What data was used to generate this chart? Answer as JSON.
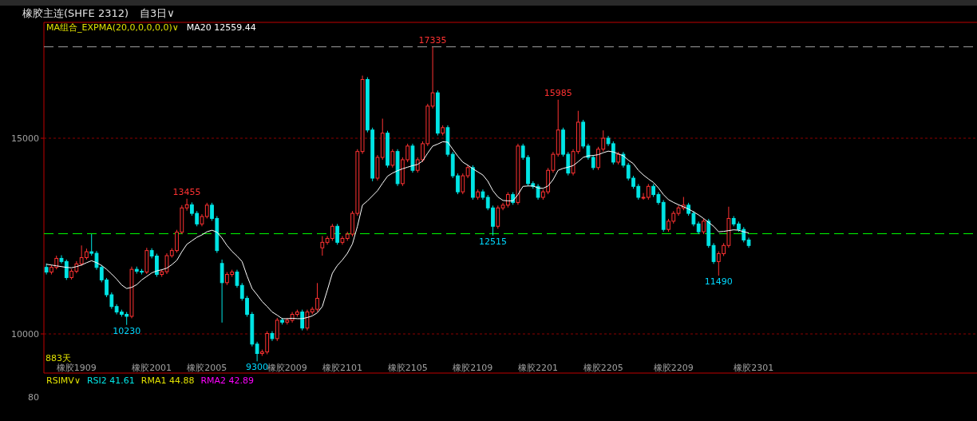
{
  "chart_data": [
    {
      "type": "candlestick",
      "title": "橡胶主连(SHFE 2312)",
      "subtitle": "自3日∨",
      "legend_title": "MA组合_EXPMA(20,0,0,0,0,0)∨",
      "legend": "top left",
      "grid": "y",
      "ylim": [
        9000,
        17960
      ],
      "yticks": [
        10000,
        15000
      ],
      "categories": [
        null,
        null,
        null,
        null,
        null,
        null,
        "橡胶1909",
        null,
        null,
        null,
        null,
        null,
        null,
        null,
        null,
        null,
        null,
        null,
        null,
        null,
        null,
        "橡胶2001",
        null,
        null,
        null,
        null,
        null,
        null,
        null,
        null,
        null,
        null,
        "橡胶2005",
        null,
        null,
        null,
        null,
        null,
        null,
        null,
        null,
        null,
        null,
        null,
        null,
        null,
        null,
        null,
        "橡胶2009",
        null,
        null,
        null,
        null,
        null,
        null,
        null,
        null,
        null,
        null,
        "橡胶2101",
        null,
        null,
        null,
        null,
        null,
        null,
        null,
        null,
        null,
        null,
        null,
        null,
        "橡胶2105",
        null,
        null,
        null,
        null,
        null,
        null,
        null,
        null,
        null,
        null,
        null,
        null,
        "橡胶2109",
        null,
        null,
        null,
        null,
        null,
        null,
        null,
        null,
        null,
        null,
        null,
        null,
        "橡胶2201",
        null,
        null,
        null,
        null,
        null,
        null,
        null,
        null,
        null,
        null,
        null,
        null,
        "橡胶2205",
        null,
        null,
        null,
        null,
        null,
        null,
        null,
        null,
        null,
        null,
        null,
        null,
        null,
        "橡胶2209",
        null,
        null,
        null,
        null,
        null,
        null,
        null,
        null,
        null,
        null,
        null,
        null,
        null,
        null,
        null,
        "橡胶2301",
        null,
        null,
        null,
        null,
        null,
        null,
        null,
        null,
        null,
        null,
        null,
        null,
        null,
        null,
        null,
        null,
        null,
        null,
        null,
        null,
        null,
        null,
        null,
        null,
        null,
        null,
        null,
        null,
        null,
        null,
        null,
        null,
        null,
        null,
        null,
        null,
        null,
        null,
        null,
        null,
        null,
        null,
        null,
        null
      ],
      "ohlc": [
        [
          11700,
          11800,
          11520,
          11580
        ],
        [
          11580,
          11760,
          11520,
          11700
        ],
        [
          11700,
          12000,
          11650,
          11930
        ],
        [
          11930,
          12010,
          11800,
          11850
        ],
        [
          11850,
          11900,
          11380,
          11440
        ],
        [
          11440,
          11660,
          11390,
          11600
        ],
        [
          11600,
          11860,
          11550,
          11790
        ],
        [
          11790,
          12260,
          11740,
          11950
        ],
        [
          11950,
          12180,
          11900,
          12100
        ],
        [
          12100,
          12550,
          12000,
          12060
        ],
        [
          12060,
          12120,
          11640,
          11700
        ],
        [
          11700,
          11760,
          11320,
          11380
        ],
        [
          11380,
          11430,
          10940,
          11000
        ],
        [
          11000,
          11060,
          10640,
          10700
        ],
        [
          10700,
          10760,
          10500,
          10560
        ],
        [
          10560,
          10620,
          10440,
          10500
        ],
        [
          10500,
          10560,
          10230,
          10450
        ],
        [
          10450,
          11720,
          10400,
          11650
        ],
        [
          11650,
          11720,
          11540,
          11600
        ],
        [
          11600,
          11660,
          11520,
          11580
        ],
        [
          11580,
          12200,
          11530,
          12130
        ],
        [
          12130,
          12190,
          11930,
          11990
        ],
        [
          11990,
          12050,
          11460,
          11520
        ],
        [
          11520,
          11650,
          11460,
          11590
        ],
        [
          11590,
          12060,
          11530,
          12000
        ],
        [
          12000,
          12190,
          11950,
          12130
        ],
        [
          12130,
          12660,
          12080,
          12600
        ],
        [
          12600,
          13290,
          12550,
          13220
        ],
        [
          13220,
          13455,
          13150,
          13300
        ],
        [
          13300,
          13360,
          13020,
          13080
        ],
        [
          13080,
          13140,
          12750,
          12810
        ],
        [
          12810,
          13060,
          12750,
          13000
        ],
        [
          13000,
          13350,
          12950,
          13290
        ],
        [
          13290,
          13350,
          12890,
          12950
        ],
        [
          12950,
          13010,
          12070,
          12130
        ],
        [
          11800,
          11900,
          10290,
          11310
        ],
        [
          11310,
          11580,
          11250,
          11520
        ],
        [
          11520,
          11640,
          11460,
          11580
        ],
        [
          11580,
          11640,
          11180,
          11240
        ],
        [
          11240,
          11300,
          10850,
          10910
        ],
        [
          10910,
          10970,
          10440,
          10500
        ],
        [
          10500,
          10560,
          9680,
          9740
        ],
        [
          9740,
          9800,
          9300,
          9500
        ],
        [
          9500,
          9600,
          9440,
          9540
        ],
        [
          9540,
          10070,
          9480,
          10010
        ],
        [
          10010,
          10070,
          9820,
          9880
        ],
        [
          9880,
          10410,
          9820,
          10350
        ],
        [
          10350,
          10410,
          10240,
          10300
        ],
        [
          10300,
          10410,
          10240,
          10350
        ],
        [
          10350,
          10560,
          10290,
          10500
        ],
        [
          10500,
          10620,
          10440,
          10560
        ],
        [
          10560,
          10620,
          10090,
          10150
        ],
        [
          10150,
          10620,
          10090,
          10560
        ],
        [
          10560,
          10690,
          10500,
          10630
        ],
        [
          10630,
          11300,
          10570,
          10910
        ],
        [
          12200,
          12500,
          12000,
          12340
        ],
        [
          12340,
          12500,
          12280,
          12440
        ],
        [
          12440,
          12810,
          12380,
          12750
        ],
        [
          12750,
          12810,
          12280,
          12340
        ],
        [
          12340,
          12500,
          12280,
          12440
        ],
        [
          12440,
          12610,
          12380,
          12550
        ],
        [
          12550,
          13140,
          12490,
          13080
        ],
        [
          13080,
          14720,
          13020,
          14660
        ],
        [
          14660,
          16600,
          14600,
          16500
        ],
        [
          16500,
          16560,
          15150,
          15210
        ],
        [
          15210,
          15270,
          13900,
          13980
        ],
        [
          13980,
          14570,
          13920,
          14510
        ],
        [
          14510,
          15500,
          14450,
          15130
        ],
        [
          15130,
          15190,
          14250,
          14310
        ],
        [
          14310,
          14720,
          14250,
          14660
        ],
        [
          14660,
          14720,
          13780,
          13840
        ],
        [
          13840,
          14510,
          13780,
          14450
        ],
        [
          14450,
          14860,
          14390,
          14800
        ],
        [
          14800,
          14860,
          14120,
          14180
        ],
        [
          14180,
          14510,
          14120,
          14450
        ],
        [
          14450,
          14920,
          14390,
          14860
        ],
        [
          14860,
          15880,
          14800,
          15820
        ],
        [
          15820,
          17335,
          15760,
          16160
        ],
        [
          16160,
          16220,
          15070,
          15130
        ],
        [
          15130,
          15330,
          15070,
          15270
        ],
        [
          15270,
          15330,
          14530,
          14590
        ],
        [
          14590,
          14650,
          13980,
          14040
        ],
        [
          14040,
          14100,
          13570,
          13630
        ],
        [
          13630,
          14100,
          13570,
          14040
        ],
        [
          14040,
          14310,
          13980,
          14250
        ],
        [
          14250,
          14310,
          13430,
          13490
        ],
        [
          13490,
          13690,
          13430,
          13630
        ],
        [
          13630,
          13690,
          13430,
          13490
        ],
        [
          13490,
          13550,
          13160,
          13220
        ],
        [
          13220,
          13280,
          12515,
          12750
        ],
        [
          12750,
          13280,
          12690,
          13220
        ],
        [
          13220,
          13350,
          13160,
          13290
        ],
        [
          13290,
          13620,
          13230,
          13560
        ],
        [
          13560,
          13620,
          13300,
          13360
        ],
        [
          13360,
          14860,
          13300,
          14800
        ],
        [
          14800,
          14860,
          14450,
          14510
        ],
        [
          14510,
          14570,
          13780,
          13840
        ],
        [
          13840,
          13900,
          13710,
          13770
        ],
        [
          13770,
          13830,
          13430,
          13490
        ],
        [
          13490,
          13690,
          13430,
          13630
        ],
        [
          13630,
          14240,
          13570,
          14180
        ],
        [
          14180,
          14650,
          14120,
          14590
        ],
        [
          14590,
          15985,
          14530,
          15210
        ],
        [
          15210,
          15270,
          14530,
          14590
        ],
        [
          14590,
          14650,
          14050,
          14110
        ],
        [
          14110,
          14720,
          14050,
          14660
        ],
        [
          14660,
          15700,
          14600,
          15410
        ],
        [
          15410,
          15470,
          14740,
          14800
        ],
        [
          14800,
          14860,
          14450,
          14510
        ],
        [
          14510,
          14570,
          14190,
          14250
        ],
        [
          14250,
          14780,
          14190,
          14720
        ],
        [
          14720,
          15200,
          14660,
          15000
        ],
        [
          15000,
          15060,
          14800,
          14860
        ],
        [
          14860,
          14920,
          14330,
          14390
        ],
        [
          14390,
          14650,
          14330,
          14590
        ],
        [
          14590,
          14650,
          14250,
          14310
        ],
        [
          14310,
          14370,
          13920,
          13980
        ],
        [
          13980,
          14040,
          13710,
          13770
        ],
        [
          13770,
          13830,
          13430,
          13490
        ],
        [
          13490,
          13600,
          13430,
          13490
        ],
        [
          13490,
          13830,
          13430,
          13770
        ],
        [
          13770,
          13830,
          13500,
          13560
        ],
        [
          13560,
          13620,
          13300,
          13360
        ],
        [
          13360,
          13420,
          12610,
          12670
        ],
        [
          12670,
          12940,
          12610,
          12880
        ],
        [
          12880,
          13140,
          12820,
          13080
        ],
        [
          13080,
          13280,
          13020,
          13220
        ],
        [
          13220,
          13500,
          13160,
          13290
        ],
        [
          13290,
          13350,
          13020,
          13080
        ],
        [
          13080,
          13140,
          12750,
          12810
        ],
        [
          12810,
          12870,
          12550,
          12610
        ],
        [
          12610,
          12940,
          12550,
          12880
        ],
        [
          12880,
          12940,
          12200,
          12260
        ],
        [
          12260,
          12320,
          11790,
          11850
        ],
        [
          11850,
          12110,
          11490,
          12050
        ],
        [
          12050,
          12320,
          11990,
          12260
        ],
        [
          12260,
          13250,
          12200,
          12950
        ],
        [
          12950,
          13010,
          12750,
          12810
        ],
        [
          12810,
          12870,
          12610,
          12670
        ],
        [
          12670,
          12730,
          12340,
          12400
        ],
        [
          12400,
          12460,
          12200,
          12260
        ],
        null,
        null,
        null,
        null,
        null,
        null,
        null,
        null,
        null,
        null,
        null,
        null,
        null,
        null,
        null,
        null,
        null,
        null,
        null,
        null,
        null,
        null,
        null,
        null,
        null,
        null,
        null,
        null,
        null,
        null,
        null,
        null,
        null,
        null,
        null,
        null,
        null,
        null,
        null,
        null,
        null,
        null,
        null,
        null,
        null
      ],
      "colors": [
        "#00e5e5",
        "#ff3232",
        "#ff3232",
        "#00e5e5",
        "#00e5e5",
        "#ff3232",
        "#ff3232",
        "#ff3232",
        "#ff3232",
        "#00e5e5",
        "#00e5e5",
        "#00e5e5",
        "#00e5e5",
        "#00e5e5",
        "#00e5e5",
        "#00e5e5",
        "#00e5e5",
        "#ff3232",
        "#00e5e5",
        "#00e5e5",
        "#ff3232",
        "#00e5e5",
        "#00e5e5",
        "#ff3232",
        "#ff3232",
        "#ff3232",
        "#ff3232",
        "#ff3232",
        "#ff3232",
        "#00e5e5",
        "#00e5e5",
        "#ff3232",
        "#ff3232",
        "#00e5e5",
        "#00e5e5",
        "#00e5e5",
        "#ff3232",
        "#ff3232",
        "#00e5e5",
        "#00e5e5",
        "#00e5e5",
        "#00e5e5",
        "#00e5e5",
        "#ff3232",
        "#ff3232",
        "#00e5e5",
        "#ff3232",
        "#00e5e5",
        "#ff3232",
        "#ff3232",
        "#ff3232",
        "#00e5e5",
        "#ff3232",
        "#ff3232",
        "#ff3232",
        "#ff3232",
        "#ff3232",
        "#ff3232",
        "#00e5e5",
        "#ff3232",
        "#ff3232",
        "#ff3232",
        "#ff3232",
        "#ff3232",
        "#00e5e5",
        "#00e5e5",
        "#ff3232",
        "#ff3232",
        "#00e5e5",
        "#ff3232",
        "#00e5e5",
        "#ff3232",
        "#ff3232",
        "#00e5e5",
        "#ff3232",
        "#ff3232",
        "#ff3232",
        "#ff3232",
        "#00e5e5",
        "#ff3232",
        "#00e5e5",
        "#00e5e5",
        "#00e5e5",
        "#ff3232",
        "#ff3232",
        "#00e5e5",
        "#ff3232",
        "#00e5e5",
        "#00e5e5",
        "#00e5e5",
        "#ff3232",
        "#ff3232",
        "#ff3232",
        "#00e5e5",
        "#ff3232",
        "#00e5e5",
        "#00e5e5",
        "#00e5e5",
        "#00e5e5",
        "#ff3232",
        "#ff3232",
        "#ff3232",
        "#ff3232",
        "#00e5e5",
        "#00e5e5",
        "#ff3232",
        "#ff3232",
        "#00e5e5",
        "#00e5e5",
        "#00e5e5",
        "#ff3232",
        "#ff3232",
        "#00e5e5",
        "#00e5e5",
        "#ff3232",
        "#00e5e5",
        "#00e5e5",
        "#00e5e5",
        "#00e5e5",
        "#ff3232",
        "#ff3232",
        "#00e5e5",
        "#00e5e5",
        "#00e5e5",
        "#ff3232",
        "#ff3232",
        "#ff3232",
        "#ff3232",
        "#00e5e5",
        "#00e5e5",
        "#00e5e5",
        "#ff3232",
        "#00e5e5",
        "#00e5e5",
        "#ff3232",
        "#ff3232",
        "#ff3232",
        "#00e5e5",
        "#00e5e5",
        "#00e5e5",
        "#00e5e5",
        null,
        null,
        null,
        null,
        null,
        null,
        null,
        null,
        null,
        null,
        null,
        null,
        null,
        null,
        null,
        null,
        null,
        null,
        null,
        null,
        null,
        null,
        null,
        null,
        null,
        null,
        null,
        null,
        null,
        null,
        null,
        null,
        null,
        null,
        null,
        null,
        null,
        null,
        null,
        null,
        null,
        null,
        null,
        null,
        null
      ],
      "series": [
        {
          "name": "MA20 12559.44",
          "type": "line",
          "color": "#ffffff",
          "values": [
            11780,
            11760,
            11740,
            11720,
            11700,
            11690,
            11720,
            11760,
            11820,
            11870,
            11820,
            11750,
            11650,
            11530,
            11400,
            11250,
            11160,
            11190,
            11260,
            11380,
            11470,
            11560,
            11610,
            11640,
            11680,
            11770,
            11880,
            12100,
            12290,
            12380,
            12470,
            12530,
            12610,
            12650,
            12600,
            12450,
            12260,
            12110,
            11990,
            11850,
            11480,
            11160,
            11000,
            10830,
            10700,
            10560,
            10480,
            10390,
            10390,
            10400,
            10390,
            10390,
            10420,
            10460,
            10540,
            10700,
            11120,
            11550,
            11750,
            11890,
            12060,
            12300,
            12750,
            13290,
            13400,
            13530,
            13660,
            13850,
            14030,
            14110,
            14170,
            14220,
            14260,
            14300,
            14330,
            14420,
            14620,
            14800,
            14850,
            14910,
            14900,
            14720,
            14540,
            14390,
            14310,
            14220,
            14140,
            14060,
            13900,
            13660,
            13500,
            13410,
            13400,
            13400,
            13560,
            13770,
            13780,
            13780,
            13730,
            13720,
            13780,
            13940,
            14180,
            14230,
            14260,
            14300,
            14400,
            14510,
            14550,
            14560,
            14580,
            14630,
            14670,
            14650,
            14600,
            14550,
            14440,
            14350,
            14180,
            14060,
            13960,
            13870,
            13730,
            13560,
            13430,
            13360,
            13300,
            13250,
            13190,
            13120,
            13040,
            12950,
            12850,
            12750,
            12610,
            12620,
            12640,
            12660,
            12650,
            12610,
            12580,
            null,
            null,
            null,
            null,
            null,
            null,
            null,
            null,
            null,
            null,
            null,
            null,
            null,
            null,
            null,
            null,
            null,
            null,
            null,
            null,
            null,
            null,
            null,
            null,
            null,
            null,
            null,
            null,
            null,
            null,
            null,
            null,
            null,
            null,
            null,
            null,
            null,
            null,
            null,
            null,
            null,
            null,
            null,
            null,
            null
          ]
        }
      ],
      "ref_lines": [
        {
          "axis": "y",
          "value": 17335,
          "color": "#a0a0a0",
          "line_style": "dashed"
        },
        {
          "axis": "y",
          "value": 12560,
          "color": "#00ff00",
          "line_style": "dashed"
        }
      ],
      "annotations": [
        {
          "text": "17335",
          "y": 17335
        },
        {
          "text": "15985",
          "y": 15985
        },
        {
          "text": "13455",
          "y": 13455
        },
        {
          "text": "12515",
          "y": 12515
        },
        {
          "text": "10230",
          "y": 10230
        },
        {
          "text": "9300",
          "y": 9300
        },
        {
          "text": "11490",
          "y": 11490
        },
        "883天"
      ]
    },
    {
      "type": "other",
      "title": "RSIMV∨",
      "annotations": [
        "RSI2 41.61",
        "RMA1 44.88",
        "RMA2 42.89",
        "80"
      ]
    }
  ]
}
